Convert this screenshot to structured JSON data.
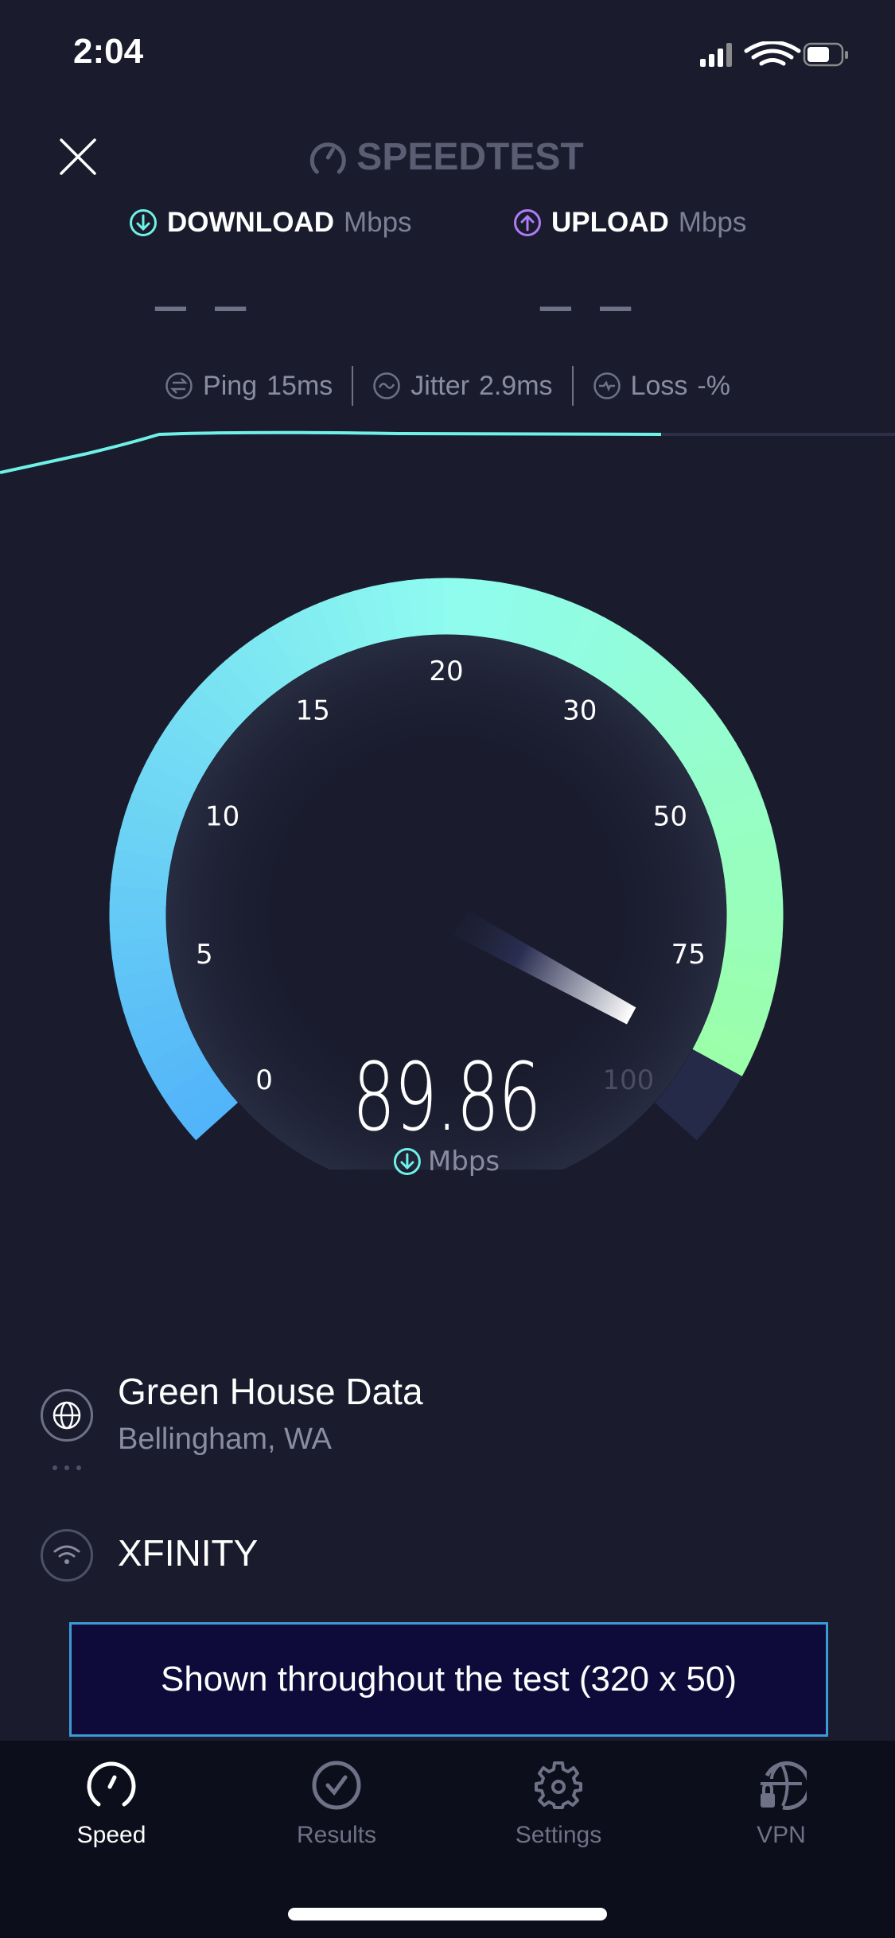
{
  "status_bar": {
    "time": "2:04",
    "icons": [
      "cellular-signal-icon",
      "wifi-icon",
      "battery-icon"
    ]
  },
  "header": {
    "close_icon": "close-icon",
    "logo_text": "SPEEDTEST"
  },
  "download": {
    "label": "DOWNLOAD",
    "unit": "Mbps",
    "value": "— —",
    "color": "#6ff1e8"
  },
  "upload": {
    "label": "UPLOAD",
    "unit": "Mbps",
    "value": "— —",
    "color": "#b07cf5"
  },
  "stats": {
    "ping": {
      "label": "Ping",
      "value": "15",
      "unit": "ms"
    },
    "jitter": {
      "label": "Jitter",
      "value": "2.9",
      "unit": "ms"
    },
    "loss": {
      "label": "Loss",
      "value": "-",
      "unit": "%"
    }
  },
  "gauge": {
    "ticks": [
      "0",
      "5",
      "10",
      "15",
      "20",
      "30",
      "50",
      "75",
      "100"
    ],
    "value": 89.86,
    "value_text": "89.86",
    "unit": "Mbps",
    "colors": {
      "start": "#52b4f9",
      "mid": "#8ffcef",
      "end": "#9dffa0",
      "remainder": "#252a48"
    }
  },
  "server": {
    "name": "Green House Data",
    "location": "Bellingham, WA"
  },
  "isp": {
    "name": "XFINITY"
  },
  "ad": {
    "text": "Shown throughout the test (320 x 50)"
  },
  "tabs": [
    {
      "label": "Speed",
      "icon": "speedometer-icon",
      "active": true
    },
    {
      "label": "Results",
      "icon": "check-circle-icon",
      "active": false
    },
    {
      "label": "Settings",
      "icon": "gear-icon",
      "active": false
    },
    {
      "label": "VPN",
      "icon": "globe-lock-icon",
      "active": false
    }
  ]
}
